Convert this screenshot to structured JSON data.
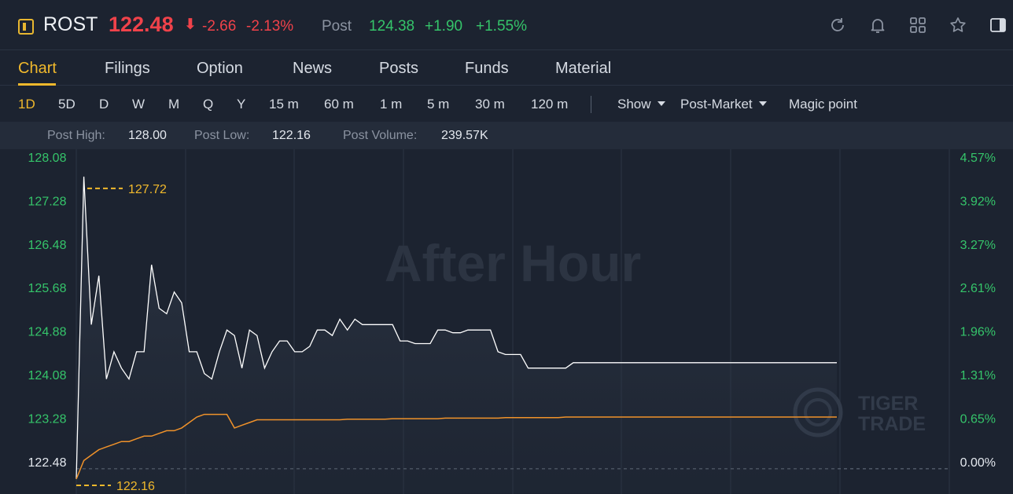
{
  "header": {
    "ticker": "ROST",
    "price": "122.48",
    "arrow": "⬇",
    "change": "-2.66",
    "change_pct": "-2.13%",
    "post_label": "Post",
    "post_price": "124.38",
    "post_change": "+1.90",
    "post_change_pct": "+1.55%",
    "icons": [
      "refresh-icon",
      "bell-icon",
      "grid-icon",
      "star-icon",
      "panel-icon"
    ]
  },
  "tabs": [
    {
      "label": "Chart",
      "active": true
    },
    {
      "label": "Filings"
    },
    {
      "label": "Option"
    },
    {
      "label": "News"
    },
    {
      "label": "Posts"
    },
    {
      "label": "Funds"
    },
    {
      "label": "Material"
    }
  ],
  "periods": [
    "1D",
    "5D",
    "D",
    "W",
    "M",
    "Q",
    "Y",
    "15 m",
    "60 m",
    "1 m",
    "5 m",
    "30 m",
    "120 m"
  ],
  "active_period": "1D",
  "dropdowns": {
    "show": "Show",
    "market": "Post-Market"
  },
  "magic_point": "Magic point",
  "stats": {
    "high_label": "Post High:",
    "high_value": "128.00",
    "low_label": "Post Low:",
    "low_value": "122.16",
    "volume_label": "Post Volume:",
    "volume_value": "239.57K"
  },
  "colors": {
    "up": "#35c46a",
    "down": "#f0424a",
    "accent": "#f1b92c",
    "avg_line": "#f0922a",
    "price_line": "#ffffff"
  },
  "chart_data": {
    "type": "line",
    "watermark": "After Hour",
    "brand_watermark": [
      "TIGER",
      "TRADE"
    ],
    "left_ticks": [
      "128.08",
      "127.28",
      "126.48",
      "125.68",
      "124.88",
      "124.08",
      "123.28",
      "122.48"
    ],
    "right_ticks": [
      "4.57%",
      "3.92%",
      "3.27%",
      "2.61%",
      "1.96%",
      "1.31%",
      "0.65%",
      "0.00%"
    ],
    "ylim": [
      121.9,
      128.08
    ],
    "base_price": 122.48,
    "max_marker": "127.72",
    "min_marker": "122.16",
    "series": [
      {
        "name": "price",
        "values": [
          122.16,
          127.72,
          125.0,
          125.9,
          124.0,
          124.5,
          124.2,
          124.0,
          124.5,
          124.5,
          126.1,
          125.3,
          125.2,
          125.6,
          125.4,
          124.5,
          124.5,
          124.1,
          124.0,
          124.5,
          124.9,
          124.8,
          124.2,
          124.9,
          124.8,
          124.2,
          124.5,
          124.7,
          124.7,
          124.5,
          124.5,
          124.6,
          124.9,
          124.9,
          124.8,
          125.1,
          124.9,
          125.1,
          125.0,
          125.0,
          125.0,
          125.0,
          125.0,
          124.7,
          124.7,
          124.65,
          124.65,
          124.65,
          124.9,
          124.9,
          124.85,
          124.85,
          124.9,
          124.9,
          124.9,
          124.9,
          124.5,
          124.45,
          124.45,
          124.45,
          124.2,
          124.2,
          124.2,
          124.2,
          124.2,
          124.2,
          124.3,
          124.3,
          124.3,
          124.3,
          124.3,
          124.3,
          124.3,
          124.3,
          124.3,
          124.3,
          124.3,
          124.3,
          124.3,
          124.3,
          124.3,
          124.3,
          124.3,
          124.3,
          124.3,
          124.3,
          124.3,
          124.3,
          124.3,
          124.3,
          124.3,
          124.3,
          124.3,
          124.3,
          124.3,
          124.3,
          124.3,
          124.3,
          124.3,
          124.3,
          124.3,
          124.3
        ]
      },
      {
        "name": "average",
        "values": [
          122.16,
          122.5,
          122.6,
          122.7,
          122.75,
          122.8,
          122.85,
          122.85,
          122.9,
          122.95,
          122.95,
          123.0,
          123.05,
          123.05,
          123.1,
          123.2,
          123.3,
          123.35,
          123.35,
          123.35,
          123.35,
          123.1,
          123.15,
          123.2,
          123.25,
          123.25,
          123.25,
          123.25,
          123.25,
          123.25,
          123.25,
          123.25,
          123.25,
          123.25,
          123.25,
          123.25,
          123.26,
          123.26,
          123.26,
          123.26,
          123.26,
          123.26,
          123.27,
          123.27,
          123.27,
          123.27,
          123.27,
          123.27,
          123.27,
          123.28,
          123.28,
          123.28,
          123.28,
          123.28,
          123.28,
          123.28,
          123.28,
          123.29,
          123.29,
          123.29,
          123.29,
          123.29,
          123.29,
          123.29,
          123.29,
          123.3,
          123.3,
          123.3,
          123.3,
          123.3,
          123.3,
          123.3,
          123.3,
          123.3,
          123.3,
          123.3,
          123.3,
          123.3,
          123.3,
          123.3,
          123.3,
          123.3,
          123.3,
          123.3,
          123.3,
          123.3,
          123.3,
          123.3,
          123.3,
          123.3,
          123.3,
          123.3,
          123.3,
          123.3,
          123.3,
          123.3,
          123.3,
          123.3,
          123.3,
          123.3,
          123.3,
          123.3
        ]
      }
    ]
  }
}
